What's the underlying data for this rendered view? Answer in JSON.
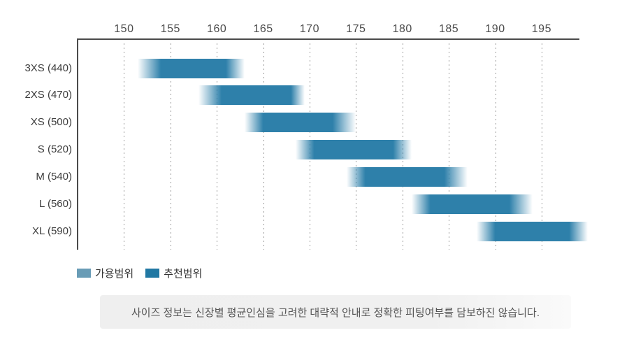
{
  "chart_data": {
    "type": "bar",
    "subtype": "horizontal-range-gantt",
    "title": "",
    "xlabel": "",
    "ylabel": "",
    "grid": "vertical-dotted",
    "x_axis_position": "top",
    "x_axis_range": [
      145,
      199
    ],
    "x_ticks": [
      150,
      155,
      160,
      165,
      170,
      175,
      180,
      185,
      190,
      195
    ],
    "categories": [
      "3XS (440)",
      "2XS (470)",
      "XS (500)",
      "S (520)",
      "M (540)",
      "L (560)",
      "XL (590)"
    ],
    "series": [
      {
        "name": "가용범위",
        "ranges": [
          [
            151.5,
            163
          ],
          [
            158,
            169.5
          ],
          [
            163,
            175
          ],
          [
            168.5,
            181
          ],
          [
            174,
            187
          ],
          [
            181,
            194
          ],
          [
            188,
            200
          ]
        ]
      },
      {
        "name": "추천범위",
        "ranges": [
          [
            154,
            161
          ],
          [
            160.5,
            168
          ],
          [
            165,
            172.5
          ],
          [
            170.5,
            179
          ],
          [
            176,
            184.5
          ],
          [
            183,
            191.5
          ],
          [
            190,
            198
          ]
        ]
      }
    ],
    "legend_position": "bottom-left"
  },
  "legend": {
    "items": [
      {
        "label": "가용범위",
        "color": "#699cb6"
      },
      {
        "label": "추천범위",
        "color": "#2178a3"
      }
    ]
  },
  "footer": {
    "note": "사이즈 정보는 신장별 평균인심을 고려한 대략적 안내로 정확한 피팅여부를 담보하진 않습니다."
  },
  "colors": {
    "bar_solid": "#2e80aa",
    "axis_line": "#4a4a4a",
    "gridline": "#9a9a9a",
    "tick_label": "#4a4a4a",
    "category_label": "#3c3c3c",
    "footer_bg": "#efefef",
    "footer_text": "#555555"
  }
}
